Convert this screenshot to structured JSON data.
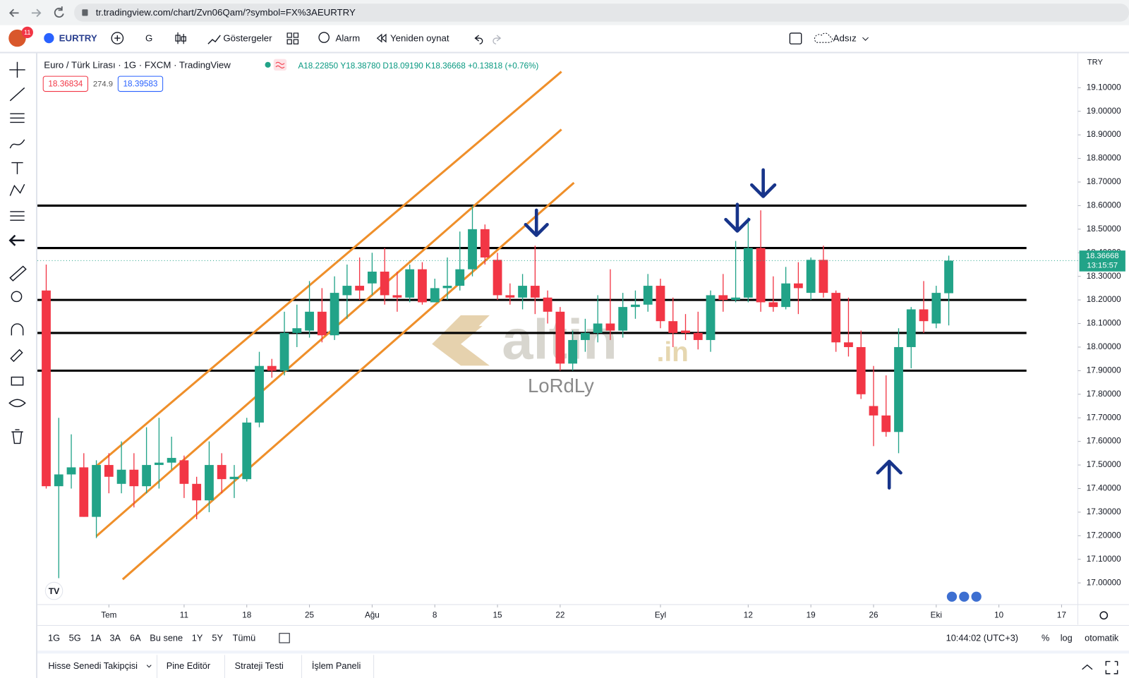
{
  "browser": {
    "url": "tr.tradingview.com/chart/Zvn06Qam/?symbol=FX%3AEURTRY"
  },
  "toolbar": {
    "badge": "11",
    "symbol": "EURTRY",
    "interval": "G",
    "indicators": "Göstergeler",
    "alarm": "Alarm",
    "replay": "Yeniden oynat",
    "layout": "Adsız"
  },
  "legend": {
    "title": "Euro / Türk Lirası · 1G · FXCM · TradingView",
    "ohlc": [
      "A18.22850",
      "Y18.38780",
      "D18.09190",
      "K18.36668",
      "+0.13818 (+0.76%)"
    ],
    "sell": "18.36834",
    "spread": "274.9",
    "buy": "18.39583"
  },
  "chart_data": {
    "type": "candlestick",
    "currency": "TRY",
    "up_color": "#22a388",
    "down_color": "#f23645",
    "open": [
      18.24,
      17.41,
      17.46,
      17.49,
      17.28,
      17.5,
      17.42,
      17.48,
      17.41,
      17.5,
      17.51,
      17.52,
      17.42,
      17.35,
      17.5,
      17.44,
      17.44,
      17.68,
      17.92,
      17.9,
      18.06,
      18.07,
      18.15,
      18.05,
      18.22,
      18.26,
      18.27,
      18.32,
      18.22,
      18.21,
      18.33,
      18.19,
      18.25,
      18.26,
      18.33,
      18.5,
      18.37,
      18.22,
      18.21,
      18.26,
      18.21,
      18.15,
      17.93,
      18.03,
      18.06,
      18.1,
      18.07,
      18.17,
      18.18,
      18.26,
      18.11,
      18.07,
      18.06,
      18.03,
      18.22,
      18.2,
      18.21,
      18.42,
      18.19,
      18.17,
      18.27,
      18.23,
      18.37,
      18.23,
      18.02,
      18.0,
      17.75,
      17.71,
      17.64,
      18.0,
      18.16,
      18.1,
      18.2285
    ],
    "high": [
      18.35,
      17.7,
      17.63,
      17.55,
      17.52,
      17.55,
      17.6,
      17.55,
      17.66,
      17.7,
      17.62,
      17.54,
      17.45,
      17.6,
      17.55,
      17.5,
      17.7,
      17.98,
      17.95,
      18.15,
      18.18,
      18.28,
      18.25,
      18.3,
      18.35,
      18.38,
      18.4,
      18.42,
      18.32,
      18.35,
      18.36,
      18.29,
      18.38,
      18.49,
      18.6,
      18.52,
      18.4,
      18.27,
      18.31,
      18.43,
      18.24,
      18.17,
      18.07,
      18.12,
      18.22,
      18.33,
      18.23,
      18.24,
      18.31,
      18.29,
      18.21,
      18.14,
      18.15,
      18.24,
      18.31,
      18.45,
      18.55,
      18.58,
      18.3,
      18.34,
      18.36,
      18.38,
      18.43,
      18.24,
      18.21,
      18.07,
      17.92,
      17.88,
      18.08,
      18.17,
      18.28,
      18.26,
      18.3878
    ],
    "low": [
      17.4,
      17.02,
      17.4,
      17.28,
      17.19,
      17.38,
      17.38,
      17.32,
      17.38,
      17.4,
      17.48,
      17.36,
      17.27,
      17.3,
      17.38,
      17.36,
      17.43,
      17.66,
      17.87,
      17.88,
      18.0,
      18.04,
      18.02,
      18.03,
      18.12,
      18.2,
      18.22,
      18.18,
      18.15,
      18.19,
      18.18,
      18.19,
      18.2,
      18.24,
      18.3,
      18.35,
      18.2,
      18.18,
      18.16,
      18.14,
      18.1,
      17.9,
      17.9,
      17.98,
      18.02,
      18.03,
      18.04,
      18.12,
      18.15,
      18.08,
      18.0,
      18.03,
      17.99,
      17.98,
      18.15,
      18.19,
      18.19,
      18.15,
      18.15,
      18.16,
      18.14,
      18.2,
      18.21,
      17.98,
      17.96,
      17.78,
      17.58,
      17.62,
      17.55,
      17.91,
      18.06,
      18.08,
      18.0919
    ],
    "close": [
      17.41,
      17.46,
      17.49,
      17.28,
      17.5,
      17.45,
      17.48,
      17.41,
      17.5,
      17.51,
      17.53,
      17.42,
      17.35,
      17.5,
      17.44,
      17.45,
      17.68,
      17.92,
      17.9,
      18.06,
      18.08,
      18.15,
      18.05,
      18.23,
      18.26,
      18.24,
      18.32,
      18.22,
      18.21,
      18.33,
      18.19,
      18.25,
      18.26,
      18.33,
      18.5,
      18.38,
      18.22,
      18.21,
      18.26,
      18.21,
      18.15,
      17.93,
      18.03,
      18.06,
      18.1,
      18.07,
      18.17,
      18.18,
      18.26,
      18.11,
      18.06,
      18.06,
      18.03,
      18.22,
      18.2,
      18.21,
      18.42,
      18.19,
      18.17,
      18.27,
      18.25,
      18.37,
      18.23,
      18.02,
      18.0,
      17.8,
      17.71,
      17.64,
      18.0,
      18.16,
      18.11,
      18.23,
      18.36668
    ],
    "xlim": [
      -0.7,
      82.3
    ],
    "xticks": [
      {
        "value": 5,
        "label": "Tem"
      },
      {
        "value": 11,
        "label": "11"
      },
      {
        "value": 16,
        "label": "18"
      },
      {
        "value": 21,
        "label": "25"
      },
      {
        "value": 26,
        "label": "Ağu"
      },
      {
        "value": 31,
        "label": "8"
      },
      {
        "value": 36,
        "label": "15"
      },
      {
        "value": 41,
        "label": "22"
      },
      {
        "value": 49,
        "label": "Eyl"
      },
      {
        "value": 56,
        "label": "12"
      },
      {
        "value": 61,
        "label": "19"
      },
      {
        "value": 66,
        "label": "26"
      },
      {
        "value": 71,
        "label": "Eki"
      },
      {
        "value": 76,
        "label": "10"
      },
      {
        "value": 81,
        "label": "17"
      }
    ],
    "ylim": [
      16.908,
      19.243
    ],
    "yticks": [
      {
        "value": 17.0,
        "label": "17.00000"
      },
      {
        "value": 17.1,
        "label": "17.10000"
      },
      {
        "value": 17.2,
        "label": "17.20000"
      },
      {
        "value": 17.3,
        "label": "17.30000"
      },
      {
        "value": 17.4,
        "label": "17.40000"
      },
      {
        "value": 17.5,
        "label": "17.50000"
      },
      {
        "value": 17.6,
        "label": "17.60000"
      },
      {
        "value": 17.7,
        "label": "17.70000"
      },
      {
        "value": 17.8,
        "label": "17.80000"
      },
      {
        "value": 17.9,
        "label": "17.90000"
      },
      {
        "value": 18.0,
        "label": "18.00000"
      },
      {
        "value": 18.1,
        "label": "18.10000"
      },
      {
        "value": 18.2,
        "label": "18.20000"
      },
      {
        "value": 18.3,
        "label": "18.30000"
      },
      {
        "value": 18.4,
        "label": "18.40000"
      },
      {
        "value": 18.5,
        "label": "18.50000"
      },
      {
        "value": 18.6,
        "label": "18.60000"
      },
      {
        "value": 18.7,
        "label": "18.70000"
      },
      {
        "value": 18.8,
        "label": "18.80000"
      },
      {
        "value": 18.9,
        "label": "18.90000"
      },
      {
        "value": 19.0,
        "label": "19.00000"
      },
      {
        "value": 19.1,
        "label": "19.10000"
      }
    ],
    "level_x": [
      -0.7,
      78.2
    ],
    "levels": [
      18.6,
      18.42,
      18.2,
      18.06,
      17.9
    ],
    "trendlines": [
      {
        "x": [
          4,
          41.1
        ],
        "y": [
          17.495,
          19.168
        ]
      },
      {
        "x": [
          4,
          41.1
        ],
        "y": [
          17.198,
          18.923
        ]
      },
      {
        "x": [
          6.1,
          42.1
        ],
        "y": [
          17.015,
          18.697
        ]
      }
    ],
    "trend_color": "#ef8f2a",
    "last_label": "18.36668",
    "countdown": "13:15:57"
  },
  "watermark": {
    "brand": "altin",
    "suffix": ".in",
    "author": "LoRdLy"
  },
  "bottom_bar": {
    "ranges": [
      "1G",
      "5G",
      "1A",
      "3A",
      "6A",
      "Bu sene",
      "1Y",
      "5Y",
      "Tümü"
    ],
    "clock": "10:44:02 (UTC+3)",
    "percent": "%",
    "log": "log",
    "auto": "otomatik"
  },
  "tabs": [
    "Hisse Senedi Takipçisi",
    "Pine Editör",
    "Strateji Testi",
    "İşlem Paneli"
  ]
}
